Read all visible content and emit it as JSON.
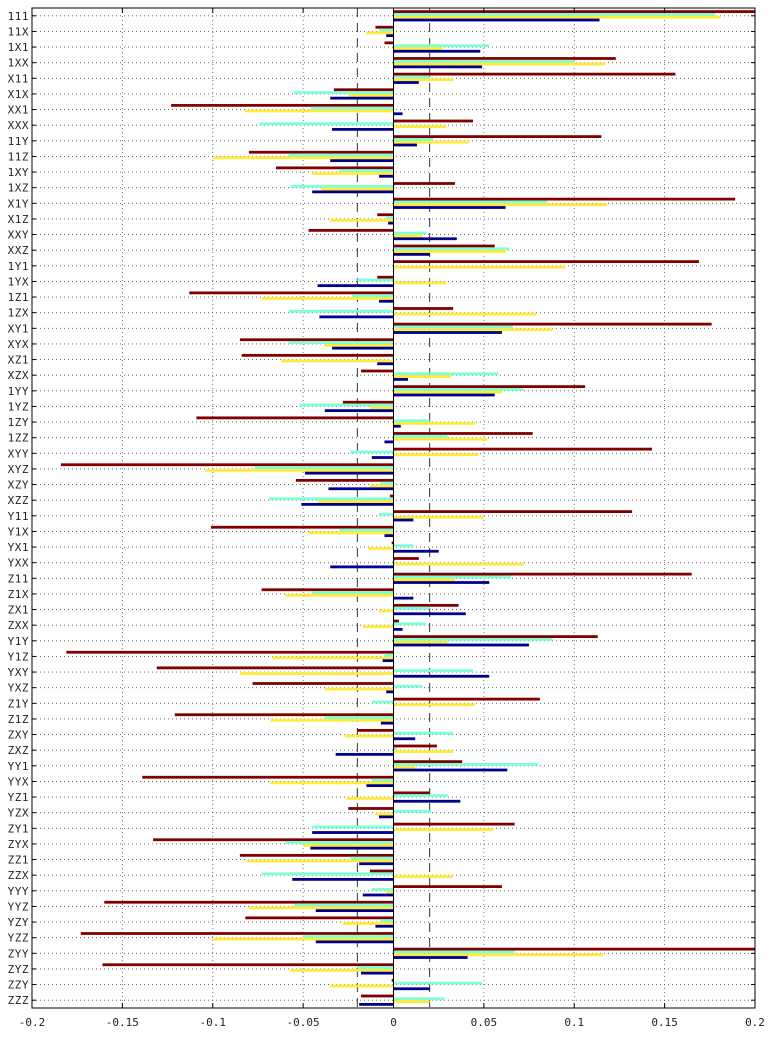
{
  "chart_data": {
    "type": "bar",
    "orientation": "horizontal",
    "title": "",
    "xlabel": "",
    "ylabel": "",
    "xlim": [
      -0.2,
      0.2
    ],
    "x_ticks": [
      "-0.2",
      "-0.15",
      "-0.1",
      "-0.05",
      "0",
      "0.05",
      "0.1",
      "0.15",
      "0.2"
    ],
    "x_tick_values": [
      -0.2,
      -0.15,
      -0.1,
      -0.05,
      0,
      0.05,
      0.1,
      0.15,
      0.2
    ],
    "reference_lines": [
      -0.02,
      0.02
    ],
    "grid": "dotted horizontal gridlines at every category; dotted vertical gridlines at every x tick",
    "legend": "none",
    "categories": [
      "111",
      "11X",
      "1X1",
      "1XX",
      "X11",
      "X1X",
      "XX1",
      "XXX",
      "11Y",
      "11Z",
      "1XY",
      "1XZ",
      "X1Y",
      "X1Z",
      "XXY",
      "XXZ",
      "1Y1",
      "1YX",
      "1Z1",
      "1ZX",
      "XY1",
      "XYX",
      "XZ1",
      "XZX",
      "1YY",
      "1YZ",
      "1ZY",
      "1ZZ",
      "XYY",
      "XYZ",
      "XZY",
      "XZZ",
      "Y11",
      "Y1X",
      "YX1",
      "YXX",
      "Z11",
      "Z1X",
      "ZX1",
      "ZXX",
      "Y1Y",
      "Y1Z",
      "YXY",
      "YXZ",
      "Z1Y",
      "Z1Z",
      "ZXY",
      "ZXZ",
      "YY1",
      "YYX",
      "YZ1",
      "YZX",
      "ZY1",
      "ZYX",
      "ZZ1",
      "ZZX",
      "YYY",
      "YYZ",
      "YZY",
      "YZZ",
      "ZYY",
      "ZYZ",
      "ZZY",
      "ZZZ"
    ],
    "series": [
      {
        "color": "#800000",
        "values": [
          0.2,
          -0.01,
          -0.005,
          0.123,
          0.156,
          -0.033,
          -0.123,
          0.044,
          0.115,
          -0.08,
          -0.065,
          0.034,
          0.189,
          -0.009,
          -0.047,
          0.056,
          0.169,
          -0.009,
          -0.113,
          0.033,
          0.176,
          -0.085,
          -0.084,
          -0.018,
          0.106,
          -0.028,
          -0.109,
          0.077,
          0.143,
          -0.184,
          -0.054,
          -0.002,
          0.132,
          -0.101,
          -0.001,
          0.014,
          0.165,
          -0.073,
          0.036,
          0.003,
          0.113,
          -0.181,
          -0.131,
          -0.078,
          0.081,
          -0.121,
          -0.02,
          0.024,
          0.038,
          -0.139,
          0.02,
          -0.025,
          0.067,
          -0.133,
          -0.085,
          -0.013,
          0.06,
          -0.16,
          -0.082,
          -0.173,
          0.2,
          -0.161,
          -0.001,
          -0.018
        ]
      },
      {
        "color": "#7fffd4",
        "values": [
          0.178,
          -0.008,
          0.053,
          0.1,
          0.02,
          -0.055,
          -0.046,
          -0.074,
          0.022,
          -0.058,
          -0.03,
          -0.057,
          0.085,
          -0.004,
          0.018,
          0.064,
          0.0,
          -0.02,
          -0.023,
          -0.058,
          0.066,
          -0.058,
          -0.001,
          0.058,
          0.072,
          -0.052,
          0.02,
          0.03,
          -0.024,
          -0.077,
          -0.007,
          -0.069,
          -0.008,
          -0.03,
          0.011,
          0.001,
          0.065,
          -0.045,
          0.02,
          0.018,
          0.088,
          -0.005,
          0.044,
          0.016,
          -0.012,
          -0.038,
          0.033,
          0.002,
          0.08,
          -0.012,
          0.03,
          0.021,
          -0.045,
          -0.06,
          -0.024,
          -0.073,
          -0.012,
          -0.055,
          -0.007,
          -0.05,
          0.067,
          -0.02,
          0.049,
          0.028
        ]
      },
      {
        "color": "#ffeb3b",
        "values": [
          0.181,
          -0.015,
          0.027,
          0.117,
          0.033,
          -0.025,
          -0.082,
          0.029,
          0.042,
          -0.1,
          -0.045,
          -0.04,
          0.118,
          -0.035,
          0.016,
          0.062,
          0.095,
          0.029,
          -0.073,
          0.079,
          0.088,
          -0.038,
          -0.062,
          0.032,
          0.06,
          -0.013,
          0.045,
          0.052,
          0.047,
          -0.104,
          -0.013,
          -0.042,
          0.05,
          -0.047,
          -0.014,
          0.072,
          0.034,
          -0.06,
          -0.008,
          -0.017,
          0.03,
          -0.067,
          -0.085,
          -0.038,
          0.045,
          -0.068,
          -0.027,
          0.033,
          0.012,
          -0.068,
          -0.026,
          -0.01,
          0.055,
          -0.05,
          -0.081,
          0.033,
          -0.004,
          -0.08,
          -0.028,
          -0.1,
          0.116,
          -0.057,
          -0.035,
          0.02
        ]
      },
      {
        "color": "#00008b",
        "values": [
          0.114,
          -0.004,
          0.048,
          0.049,
          0.014,
          -0.035,
          0.005,
          -0.034,
          0.013,
          -0.035,
          -0.008,
          -0.045,
          0.062,
          -0.003,
          0.035,
          0.02,
          0.0,
          -0.042,
          -0.008,
          -0.041,
          0.06,
          -0.034,
          -0.009,
          0.008,
          0.056,
          -0.038,
          0.004,
          -0.005,
          -0.012,
          -0.049,
          -0.036,
          -0.051,
          0.011,
          -0.005,
          0.025,
          -0.035,
          0.053,
          0.011,
          0.04,
          0.005,
          0.075,
          -0.006,
          0.053,
          -0.004,
          0.0,
          -0.007,
          0.012,
          -0.032,
          0.063,
          -0.015,
          0.037,
          -0.008,
          -0.045,
          -0.046,
          -0.019,
          -0.056,
          -0.017,
          -0.043,
          -0.01,
          -0.043,
          0.041,
          -0.018,
          0.02,
          -0.019
        ]
      }
    ]
  }
}
